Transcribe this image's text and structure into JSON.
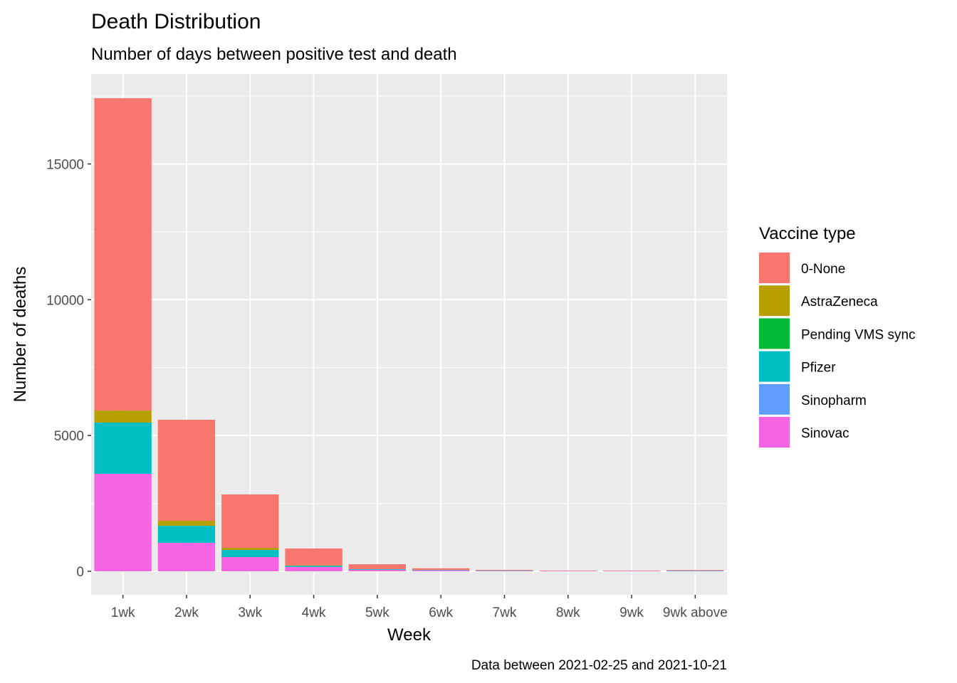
{
  "chart_data": {
    "type": "bar",
    "stacked": true,
    "title": "Death Distribution",
    "subtitle": "Number of days between positive test and death",
    "xlabel": "Week",
    "ylabel": "Number of deaths",
    "caption": "Data between 2021-02-25 and 2021-10-21",
    "ylim": [
      -850,
      18300
    ],
    "yticks": [
      0,
      5000,
      10000,
      15000
    ],
    "yticklabels": [
      "0",
      "5000",
      "10000",
      "15000"
    ],
    "grid": true,
    "legend": {
      "title": "Vaccine type",
      "position": "right"
    },
    "categories": [
      "1wk",
      "2wk",
      "3wk",
      "4wk",
      "5wk",
      "6wk",
      "7wk",
      "8wk",
      "9wk",
      "9wk above"
    ],
    "series": [
      {
        "name": "Sinovac",
        "color": "#F564E3",
        "values": [
          3590,
          1050,
          525,
          160,
          50,
          30,
          25,
          15,
          15,
          20
        ]
      },
      {
        "name": "Sinopharm",
        "color": "#619CFF",
        "values": [
          0,
          0,
          0,
          0,
          10,
          5,
          0,
          0,
          0,
          0
        ]
      },
      {
        "name": "Pfizer",
        "color": "#00BFC4",
        "values": [
          1885,
          625,
          260,
          45,
          20,
          10,
          5,
          0,
          0,
          5
        ]
      },
      {
        "name": "Pending VMS sync",
        "color": "#00BA38",
        "values": [
          0,
          0,
          0,
          0,
          0,
          0,
          0,
          0,
          0,
          0
        ]
      },
      {
        "name": "AstraZeneca",
        "color": "#B79F00",
        "values": [
          445,
          185,
          80,
          15,
          0,
          0,
          0,
          0,
          0,
          0
        ]
      },
      {
        "name": "0-None",
        "color": "#F8766D",
        "values": [
          11500,
          3720,
          1965,
          620,
          180,
          65,
          20,
          10,
          10,
          20
        ]
      }
    ],
    "legend_order": [
      "0-None",
      "AstraZeneca",
      "Pending VMS sync",
      "Pfizer",
      "Sinopharm",
      "Sinovac"
    ]
  },
  "colors": {
    "panel_background": "#EBEBEB",
    "grid_line": "#FFFFFF",
    "tick_text": "#4D4D4D"
  }
}
